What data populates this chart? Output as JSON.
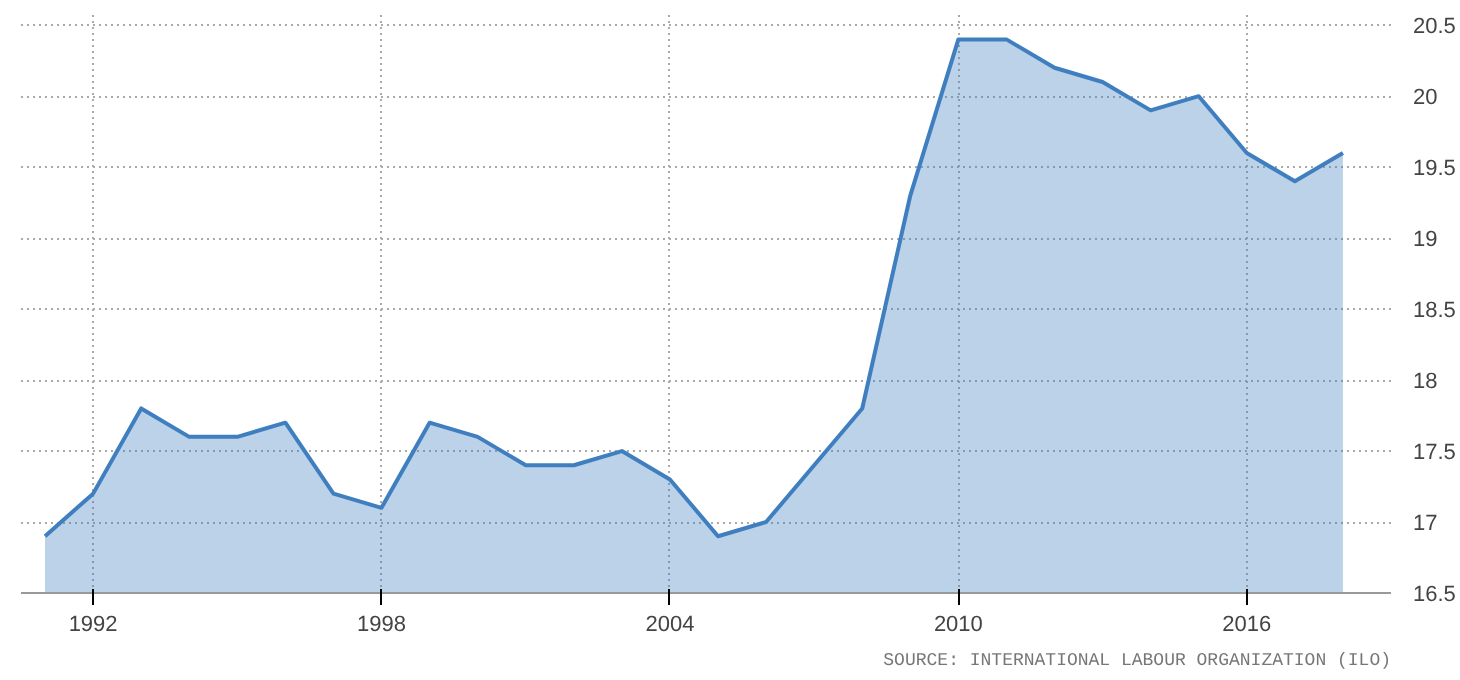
{
  "chart_data": {
    "type": "area",
    "x": [
      1991,
      1992,
      1993,
      1994,
      1995,
      1996,
      1997,
      1998,
      1999,
      2000,
      2001,
      2002,
      2003,
      2004,
      2005,
      2006,
      2007,
      2008,
      2009,
      2010,
      2011,
      2012,
      2013,
      2014,
      2015,
      2016,
      2017,
      2018
    ],
    "series": [
      {
        "color": "#3f7fbf",
        "values": [
          16.9,
          17.2,
          17.8,
          17.6,
          17.6,
          17.7,
          17.2,
          17.1,
          17.7,
          17.6,
          17.4,
          17.4,
          17.5,
          17.3,
          16.9,
          17.0,
          17.4,
          17.8,
          19.3,
          20.4,
          20.4,
          20.2,
          20.1,
          19.9,
          20.0,
          19.6,
          19.4,
          19.6
        ]
      }
    ],
    "xlim": [
      1990.5,
      2019
    ],
    "xticks": [
      1992,
      1998,
      2004,
      2010,
      2016
    ],
    "ylim": [
      16.5,
      20.6
    ],
    "yticks": [
      16.5,
      17,
      17.5,
      18,
      18.5,
      19,
      19.5,
      20,
      20.5
    ],
    "grid": true,
    "annotations": [
      "SOURCE: INTERNATIONAL LABOUR ORGANIZATION (ILO)"
    ]
  }
}
